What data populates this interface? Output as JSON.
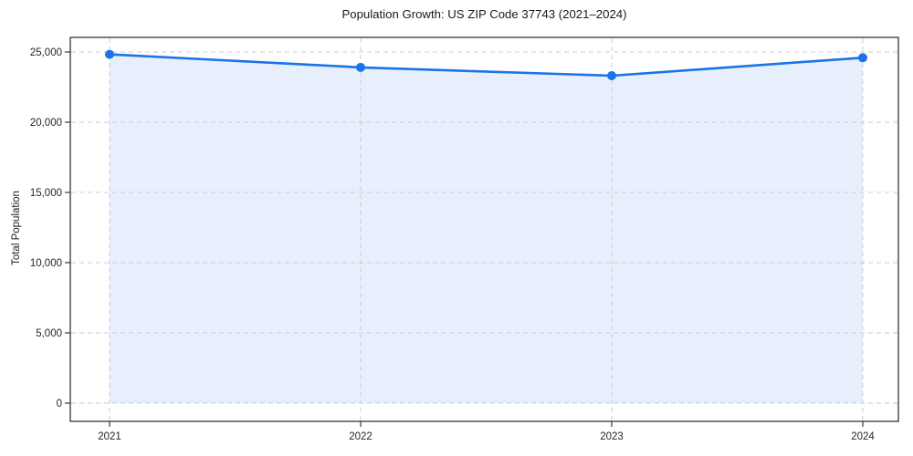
{
  "figure": {
    "background": "#ffffff"
  },
  "chart_data": {
    "type": "line",
    "title": "Population Growth: US ZIP Code 37743 (2021–2024)",
    "xlabel": "",
    "ylabel": "Total Population",
    "categories": [
      "2021",
      "2022",
      "2023",
      "2024"
    ],
    "series": [
      {
        "name": "Total Population",
        "values": [
          24830,
          23900,
          23310,
          24590
        ]
      }
    ],
    "yticks": [
      0,
      5000,
      10000,
      15000,
      20000,
      25000
    ],
    "ytick_labels": [
      "0",
      "5,000",
      "10,000",
      "15,000",
      "20,000",
      "25,000"
    ],
    "ylim": [
      0,
      25000
    ],
    "grid": true,
    "grid_style": "dashed",
    "area_fill": true,
    "legend": "none",
    "colors": {
      "line": "#1a73e8",
      "marker": "#1a73e8",
      "fill": "#e8effc",
      "grid": "#c9ced6",
      "axis": "#262626",
      "text": "#262626"
    }
  }
}
